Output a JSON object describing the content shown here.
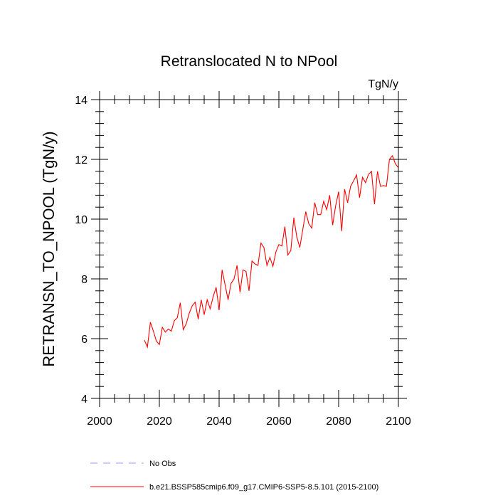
{
  "chart_data": {
    "type": "line",
    "title": "Retranslocated N to NPool",
    "units": "TgN/y",
    "ylabel": "RETRANSN_TO_NPOOL  (TgN/y)",
    "xlabel": "",
    "xlim": [
      2000,
      2100
    ],
    "ylim": [
      4,
      14
    ],
    "xticks": [
      2000,
      2020,
      2040,
      2060,
      2080,
      2100
    ],
    "yticks": [
      4,
      6,
      8,
      10,
      12,
      14
    ],
    "grid": false,
    "legend": "bottom",
    "series": [
      {
        "name": "b.e21.BSSP585cmip6.f09_g17.CMIP6-SSP5-8.5.101 (2015-2100)",
        "color": "#ff0000",
        "style": "solid",
        "x": [
          2015,
          2016,
          2017,
          2018,
          2019,
          2020,
          2021,
          2022,
          2023,
          2024,
          2025,
          2026,
          2027,
          2028,
          2029,
          2030,
          2031,
          2032,
          2033,
          2034,
          2035,
          2036,
          2037,
          2038,
          2039,
          2040,
          2041,
          2042,
          2043,
          2044,
          2045,
          2046,
          2047,
          2048,
          2049,
          2050,
          2051,
          2052,
          2053,
          2054,
          2055,
          2056,
          2057,
          2058,
          2059,
          2060,
          2061,
          2062,
          2063,
          2064,
          2065,
          2066,
          2067,
          2068,
          2069,
          2070,
          2071,
          2072,
          2073,
          2074,
          2075,
          2076,
          2077,
          2078,
          2079,
          2080,
          2081,
          2082,
          2083,
          2084,
          2085,
          2086,
          2087,
          2088,
          2089,
          2090,
          2091,
          2092,
          2093,
          2094,
          2095,
          2096,
          2097,
          2098,
          2099,
          2100
        ],
        "values": [
          5.95,
          5.72,
          6.55,
          6.25,
          5.92,
          5.8,
          6.38,
          6.22,
          6.32,
          6.25,
          6.6,
          6.7,
          7.2,
          6.3,
          6.5,
          6.85,
          7.1,
          7.22,
          6.65,
          7.3,
          6.8,
          7.3,
          7.0,
          7.4,
          7.72,
          6.95,
          8.3,
          7.8,
          7.3,
          7.85,
          8.0,
          8.45,
          7.55,
          8.3,
          8.25,
          7.6,
          8.6,
          8.5,
          8.45,
          9.2,
          9.05,
          8.45,
          8.72,
          8.42,
          8.9,
          9.15,
          9.1,
          9.75,
          8.8,
          8.95,
          10.05,
          9.4,
          9.05,
          9.65,
          10.25,
          9.85,
          9.7,
          10.55,
          10.15,
          10.15,
          10.6,
          10.32,
          10.8,
          9.8,
          10.45,
          10.92,
          9.6,
          11.0,
          10.55,
          11.1,
          11.28,
          11.48,
          10.72,
          11.4,
          11.22,
          11.5,
          11.6,
          10.5,
          11.6,
          11.1,
          11.12,
          11.1,
          12.0,
          12.12,
          11.85,
          11.72
        ]
      },
      {
        "name": "No Obs",
        "color": "#9999ff",
        "style": "dashed",
        "x": [],
        "values": []
      }
    ]
  }
}
